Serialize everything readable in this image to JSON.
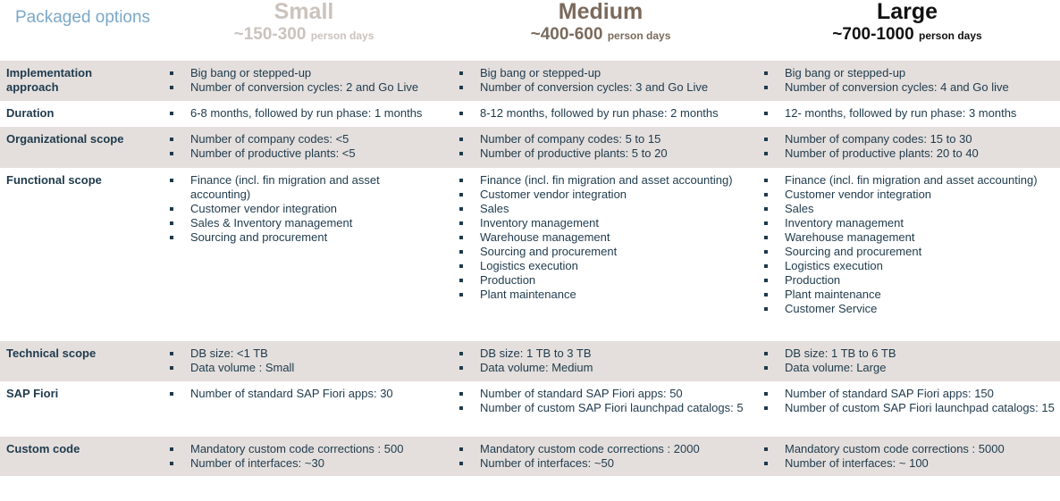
{
  "title": "Packaged options",
  "columns": [
    {
      "name": "Small",
      "days": "~150-300",
      "unit": "person days",
      "color": "#cbc3bd"
    },
    {
      "name": "Medium",
      "days": "~400-600",
      "unit": "person days",
      "color": "#7b6a5c"
    },
    {
      "name": "Large",
      "days": "~700-1000",
      "unit": "person days",
      "color": "#111111"
    }
  ],
  "rows": [
    {
      "label": "Implementation approach",
      "cells": [
        [
          "Big bang or stepped-up",
          "Number of conversion cycles: 2 and Go Live"
        ],
        [
          "Big bang or stepped-up",
          "Number of conversion cycles: 3 and Go Live"
        ],
        [
          "Big bang or stepped-up",
          "Number of conversion cycles: 4 and  Go live"
        ]
      ]
    },
    {
      "label": "Duration",
      "cells": [
        [
          "6-8 months, followed by run phase: 1 months"
        ],
        [
          "8-12 months, followed by run phase: 2 months"
        ],
        [
          "12- months, followed by run phase: 3 months"
        ]
      ]
    },
    {
      "label": "Organizational scope",
      "cells": [
        [
          "Number of company codes: <5",
          "Number of productive plants: <5"
        ],
        [
          "Number of company codes: 5 to 15",
          "Number of productive plants: 5 to 20"
        ],
        [
          "Number of company codes: 15 to 30",
          "Number of productive plants: 20 to 40"
        ]
      ]
    },
    {
      "label": "Functional scope",
      "cells": [
        [
          "Finance (incl. fin migration and asset accounting)",
          "Customer vendor integration",
          "Sales & Inventory management",
          "Sourcing and procurement"
        ],
        [
          "Finance (incl. fin migration and asset accounting)",
          "Customer vendor integration",
          "Sales",
          "Inventory management",
          "Warehouse management",
          "Sourcing and procurement",
          "Logistics execution",
          "Production",
          "Plant maintenance"
        ],
        [
          "Finance (incl. fin migration and asset accounting)",
          "Customer vendor integration",
          "Sales",
          "Inventory management",
          "Warehouse management",
          "Sourcing and procurement",
          "Logistics execution",
          "Production",
          "Plant maintenance",
          "Customer Service"
        ]
      ]
    },
    {
      "label": "Technical scope",
      "cells": [
        [
          "DB size: <1 TB",
          "Data volume : Small"
        ],
        [
          "DB size: 1 TB to 3 TB",
          "Data volume: Medium"
        ],
        [
          "DB size: 1 TB to 6 TB",
          "Data volume: Large"
        ]
      ]
    },
    {
      "label": "SAP Fiori",
      "cells": [
        [
          "Number of standard SAP Fiori apps: 30"
        ],
        [
          "Number of standard SAP Fiori apps: 50",
          "Number of custom SAP Fiori launchpad catalogs: 5"
        ],
        [
          "Number of standard SAP Fiori apps: 150",
          "Number of custom SAP Fiori launchpad catalogs: 15"
        ]
      ]
    },
    {
      "label": "Custom code",
      "cells": [
        [
          "Mandatory custom code corrections : 500",
          "Number of interfaces: ~30"
        ],
        [
          "Mandatory custom code corrections : 2000",
          "Number of interfaces: ~50"
        ],
        [
          "Mandatory custom code corrections : 5000",
          "Number of interfaces:  ~ 100"
        ]
      ]
    }
  ]
}
